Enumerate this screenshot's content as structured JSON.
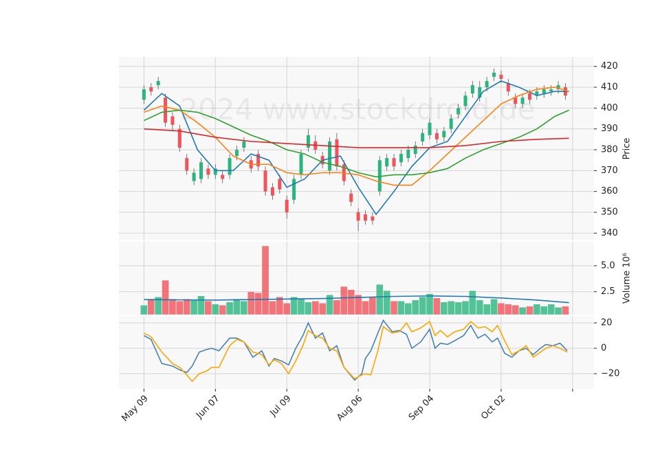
{
  "chart_data": [
    {
      "type": "candlestick",
      "ylabel": "Price",
      "watermark": "2024 www.stockdroid.de",
      "up_color": "#2bb57e",
      "down_color": "#f0545b",
      "x": [
        0,
        2,
        4,
        6,
        8,
        10,
        12,
        14,
        16,
        18,
        20,
        22,
        24,
        26,
        28,
        30,
        32,
        34,
        36,
        38,
        40,
        42,
        44,
        46,
        48,
        50,
        52,
        54,
        56,
        58,
        60,
        62,
        64,
        66,
        68,
        70,
        72,
        74,
        76,
        78,
        80,
        82,
        84,
        86,
        88,
        90,
        92,
        94,
        96,
        98,
        100,
        102,
        104,
        106,
        108,
        110,
        112,
        114,
        116,
        118
      ],
      "open": [
        404,
        410,
        411,
        405,
        396,
        390,
        376,
        365,
        366,
        371,
        368,
        368,
        368,
        377,
        381,
        375,
        378,
        370,
        362,
        366,
        356,
        356,
        368,
        381,
        384,
        377,
        370,
        385,
        373,
        359,
        350,
        349,
        348,
        360,
        372,
        376,
        374,
        376,
        378,
        384,
        387,
        388,
        386,
        390,
        397,
        401,
        407,
        405,
        410,
        415,
        416,
        412,
        405,
        402,
        407,
        406,
        407,
        408,
        409,
        410
      ],
      "high": [
        411,
        412,
        415,
        407,
        398,
        392,
        378,
        371,
        376,
        373,
        373,
        370,
        378,
        382,
        386,
        377,
        380,
        372,
        364,
        368,
        358,
        368,
        380,
        390,
        387,
        379,
        386,
        388,
        375,
        361,
        352,
        351,
        350,
        377,
        378,
        378,
        380,
        382,
        384,
        390,
        395,
        390,
        391,
        397,
        402,
        408,
        413,
        413,
        415,
        419,
        418,
        414,
        407,
        407,
        409,
        410,
        411,
        411,
        413,
        412
      ],
      "low": [
        402,
        406,
        409,
        391,
        389,
        379,
        368,
        363,
        364,
        366,
        366,
        364,
        366,
        375,
        379,
        369,
        370,
        358,
        356,
        359,
        347,
        354,
        366,
        379,
        378,
        371,
        368,
        370,
        363,
        353,
        341,
        344,
        344,
        358,
        370,
        370,
        372,
        374,
        376,
        382,
        385,
        383,
        384,
        388,
        395,
        399,
        405,
        403,
        408,
        413,
        412,
        406,
        400,
        400,
        402,
        404,
        405,
        406,
        407,
        404
      ],
      "close": [
        409,
        408,
        413,
        393,
        392,
        381,
        370,
        369,
        374,
        368,
        371,
        366,
        376,
        380,
        384,
        371,
        372,
        360,
        358,
        361,
        350,
        366,
        378,
        387,
        380,
        373,
        384,
        372,
        365,
        355,
        346,
        346,
        346,
        375,
        376,
        372,
        378,
        380,
        382,
        388,
        393,
        385,
        389,
        395,
        400,
        406,
        411,
        410,
        413,
        417,
        414,
        408,
        402,
        405,
        404,
        408,
        409,
        409,
        411,
        406
      ],
      "lines": [
        {
          "color": "#1f77b4",
          "x": [
            0,
            5,
            10,
            15,
            20,
            25,
            30,
            35,
            40,
            45,
            50,
            55,
            60,
            65,
            70,
            75,
            80,
            85,
            90,
            95,
            100,
            105,
            110,
            115,
            119
          ],
          "values": [
            399,
            407,
            401,
            380,
            370,
            370,
            378,
            375,
            362,
            366,
            375,
            377,
            362,
            349,
            360,
            372,
            381,
            384,
            396,
            408,
            413,
            410,
            406,
            408,
            408
          ]
        },
        {
          "color": "#ff7f0e",
          "x": [
            0,
            5,
            10,
            15,
            20,
            25,
            30,
            35,
            40,
            45,
            50,
            55,
            60,
            65,
            70,
            75,
            80,
            85,
            90,
            95,
            100,
            105,
            110,
            115,
            119
          ],
          "values": [
            398,
            401,
            399,
            393,
            386,
            377,
            373,
            373,
            369,
            368,
            369,
            369,
            368,
            365,
            363,
            363,
            370,
            378,
            386,
            394,
            402,
            406,
            409,
            410,
            408
          ]
        },
        {
          "color": "#2ca02c",
          "x": [
            0,
            5,
            10,
            15,
            20,
            25,
            30,
            35,
            40,
            45,
            50,
            55,
            60,
            65,
            70,
            75,
            80,
            85,
            90,
            95,
            100,
            105,
            110,
            115,
            119
          ],
          "values": [
            394,
            398,
            399,
            398,
            395,
            391,
            387,
            384,
            380,
            378,
            374,
            372,
            369,
            367,
            368,
            368,
            369,
            371,
            376,
            380,
            383,
            386,
            390,
            396,
            399
          ]
        },
        {
          "color": "#d62728",
          "x": [
            0,
            10,
            20,
            30,
            40,
            50,
            60,
            70,
            80,
            90,
            100,
            110,
            119
          ],
          "values": [
            390,
            389,
            386,
            384,
            383,
            382,
            381,
            381,
            381,
            382,
            384,
            385,
            385.5
          ]
        }
      ],
      "ylim": [
        336.5,
        424.5
      ],
      "yticks": [
        340,
        350,
        360,
        370,
        380,
        390,
        400,
        410,
        420
      ],
      "grid": true
    },
    {
      "type": "bar",
      "ylabel": "Volume  10⁶",
      "x": [
        0,
        2,
        4,
        6,
        8,
        10,
        12,
        14,
        16,
        18,
        20,
        22,
        24,
        26,
        28,
        30,
        32,
        34,
        36,
        38,
        40,
        42,
        44,
        46,
        48,
        50,
        52,
        54,
        56,
        58,
        60,
        62,
        64,
        66,
        68,
        70,
        72,
        74,
        76,
        78,
        80,
        82,
        84,
        86,
        88,
        90,
        92,
        94,
        96,
        98,
        100,
        102,
        104,
        106,
        108,
        110,
        112,
        114,
        116,
        118
      ],
      "values": [
        1.2,
        1.8,
        2.0,
        3.6,
        1.8,
        1.6,
        1.8,
        1.7,
        2.1,
        1.6,
        1.3,
        1.2,
        1.5,
        1.8,
        1.6,
        2.5,
        2.4,
        6.9,
        1.6,
        2.0,
        1.4,
        2.0,
        1.8,
        1.5,
        1.6,
        1.4,
        2.2,
        1.7,
        3.0,
        2.7,
        2.2,
        1.6,
        2.0,
        3.2,
        2.6,
        1.6,
        1.6,
        1.4,
        1.7,
        2.0,
        2.3,
        1.9,
        1.5,
        1.6,
        1.5,
        1.6,
        2.6,
        1.7,
        1.3,
        1.8,
        1.4,
        1.3,
        1.2,
        1.0,
        1.1,
        1.3,
        1.1,
        1.3,
        1.0,
        1.1
      ],
      "lines": [
        {
          "color": "#1f77b4",
          "x": [
            0,
            10,
            20,
            30,
            40,
            50,
            60,
            70,
            80,
            90,
            100,
            110,
            119
          ],
          "values": [
            1.75,
            1.72,
            1.7,
            1.75,
            1.8,
            1.85,
            1.95,
            2.05,
            2.1,
            2.05,
            1.9,
            1.7,
            1.45
          ]
        }
      ],
      "ylim": [
        0.3,
        7.3
      ],
      "yticks": [
        2.5,
        {
          "value": 5,
          "label": "5.0"
        }
      ],
      "grid": true
    },
    {
      "type": "line",
      "series": [
        {
          "color": "#4682b4",
          "x": [
            0,
            2,
            5,
            8,
            10,
            12,
            13.5,
            15.5,
            17.5,
            19,
            21,
            24,
            26,
            28,
            30.5,
            33,
            35,
            36.5,
            38.5,
            40.5,
            42.5,
            44.5,
            46,
            48,
            50,
            52,
            54,
            56,
            59,
            61,
            62,
            63.5,
            65.5,
            67,
            69.5,
            71.5,
            73.5,
            75,
            77.5,
            80,
            81.5,
            83,
            85,
            87,
            89.5,
            91.5,
            93.5,
            95.5,
            97.5,
            99,
            101,
            103,
            105,
            107,
            109,
            111,
            112.5,
            114.5,
            116.5,
            118.5
          ],
          "values": [
            10,
            7,
            -12,
            -14,
            -17,
            -19,
            -14,
            -3,
            -1,
            0,
            -2,
            8,
            8,
            5,
            -7,
            -2,
            -14,
            -8,
            -10,
            -13,
            0,
            10,
            20,
            8,
            12,
            -2,
            2,
            -15,
            -25,
            -20,
            -8,
            -2,
            12,
            22,
            13,
            14,
            11,
            0,
            5,
            15,
            0,
            4,
            3,
            6,
            10,
            18,
            8,
            11,
            5,
            8,
            -4,
            -7,
            -2,
            0,
            -5,
            0,
            3,
            2,
            4,
            -2
          ]
        },
        {
          "color": "#ffa500",
          "x": [
            0,
            2,
            5,
            8,
            10,
            12,
            13.5,
            15.5,
            17.5,
            19,
            21,
            24,
            26,
            28,
            30.5,
            33,
            35,
            36.5,
            38.5,
            40.5,
            42.5,
            44.5,
            46,
            48,
            50,
            52,
            54,
            56,
            59,
            61,
            62,
            63.5,
            65.5,
            67,
            69.5,
            71.5,
            73.5,
            75,
            77.5,
            80,
            81.5,
            83,
            85,
            87,
            89.5,
            91.5,
            93.5,
            95.5,
            97.5,
            99,
            101,
            103,
            105,
            107,
            109,
            111,
            112.5,
            114.5,
            116.5,
            118.5
          ],
          "values": [
            12,
            9,
            -3,
            -12,
            -15,
            -21,
            -26,
            -20,
            -18,
            -15,
            -15,
            2,
            7,
            5,
            -3,
            -5,
            -13,
            -9,
            -12,
            -20,
            -10,
            2,
            14,
            10,
            8,
            0,
            -2,
            -15,
            -24,
            -21,
            -20,
            -21,
            -2,
            17,
            12,
            13,
            20,
            13,
            16,
            21,
            10,
            14,
            9,
            13,
            15,
            21,
            16,
            17,
            13,
            18,
            6,
            -5,
            -2,
            2,
            -7,
            -3,
            0,
            2,
            0,
            -3
          ]
        }
      ],
      "ylim": [
        -31.9,
        25.4
      ],
      "yticks": [
        {
          "value": -20,
          "label": "−20"
        },
        0,
        20
      ],
      "grid": true,
      "xlim": [
        -7,
        126
      ],
      "xticks": [
        {
          "value": 0,
          "label": "May 09"
        },
        {
          "value": 20,
          "label": "Jun 07"
        },
        {
          "value": 40,
          "label": "Jul 09"
        },
        {
          "value": 60,
          "label": "Aug 06"
        },
        {
          "value": 80,
          "label": "Sep 04"
        },
        {
          "value": 100,
          "label": "Oct 02"
        },
        {
          "value": 120,
          "label": ""
        }
      ]
    }
  ]
}
